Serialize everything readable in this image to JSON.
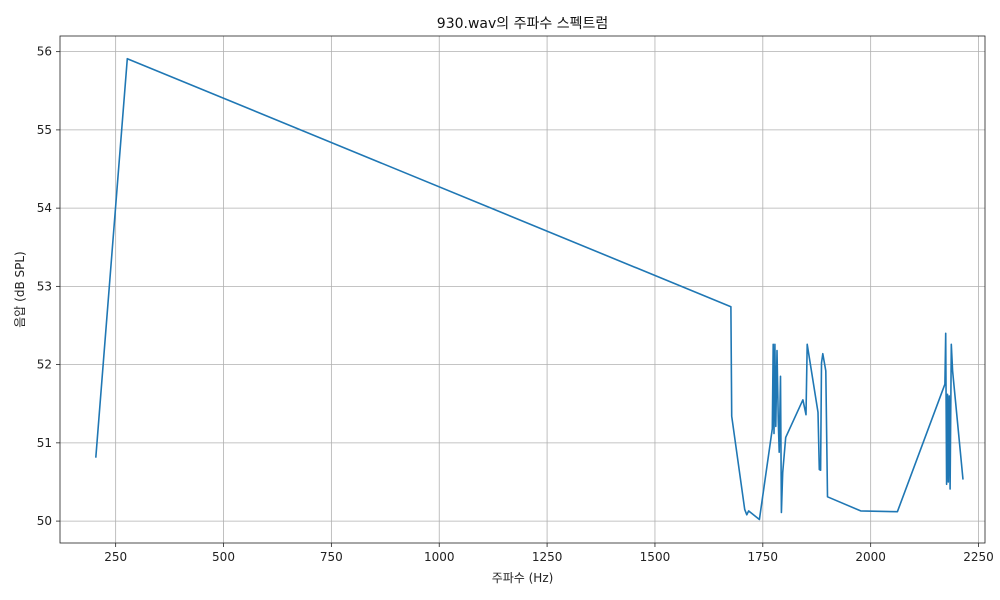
{
  "chart_data": {
    "type": "line",
    "title": "930.wav의 주파수 스펙트럼",
    "xlabel": "주파수 (Hz)",
    "ylabel": "음압 (dB SPL)",
    "xlim": [
      121,
      2265
    ],
    "ylim": [
      49.72,
      56.2
    ],
    "xticks": [
      250,
      500,
      750,
      1000,
      1250,
      1500,
      1750,
      2000,
      2250
    ],
    "yticks": [
      50,
      51,
      52,
      53,
      54,
      55,
      56
    ],
    "grid": true,
    "series_color": "#1f77b4",
    "series": [
      {
        "x": [
          204,
          277,
          1676,
          1678,
          1700,
          1708,
          1713,
          1717,
          1742,
          1772,
          1774,
          1776,
          1778,
          1780,
          1783,
          1786,
          1788,
          1791,
          1793,
          1796,
          1803,
          1843,
          1850,
          1853,
          1878,
          1881,
          1884,
          1886,
          1889,
          1896,
          1900,
          1977,
          2062,
          2172,
          2174,
          2176,
          2178,
          2180,
          2182,
          2184,
          2187,
          2190,
          2214
        ],
        "y": [
          50.81,
          55.91,
          52.74,
          51.34,
          50.47,
          50.15,
          50.08,
          50.13,
          50.02,
          51.18,
          52.26,
          51.12,
          52.26,
          51.21,
          52.18,
          51.27,
          50.88,
          51.85,
          50.11,
          50.62,
          51.07,
          51.55,
          51.36,
          52.26,
          51.39,
          50.66,
          50.65,
          52.02,
          52.14,
          51.92,
          50.31,
          50.13,
          50.12,
          51.75,
          52.4,
          50.47,
          51.62,
          50.5,
          51.6,
          50.41,
          52.26,
          51.92,
          50.53
        ]
      }
    ]
  }
}
